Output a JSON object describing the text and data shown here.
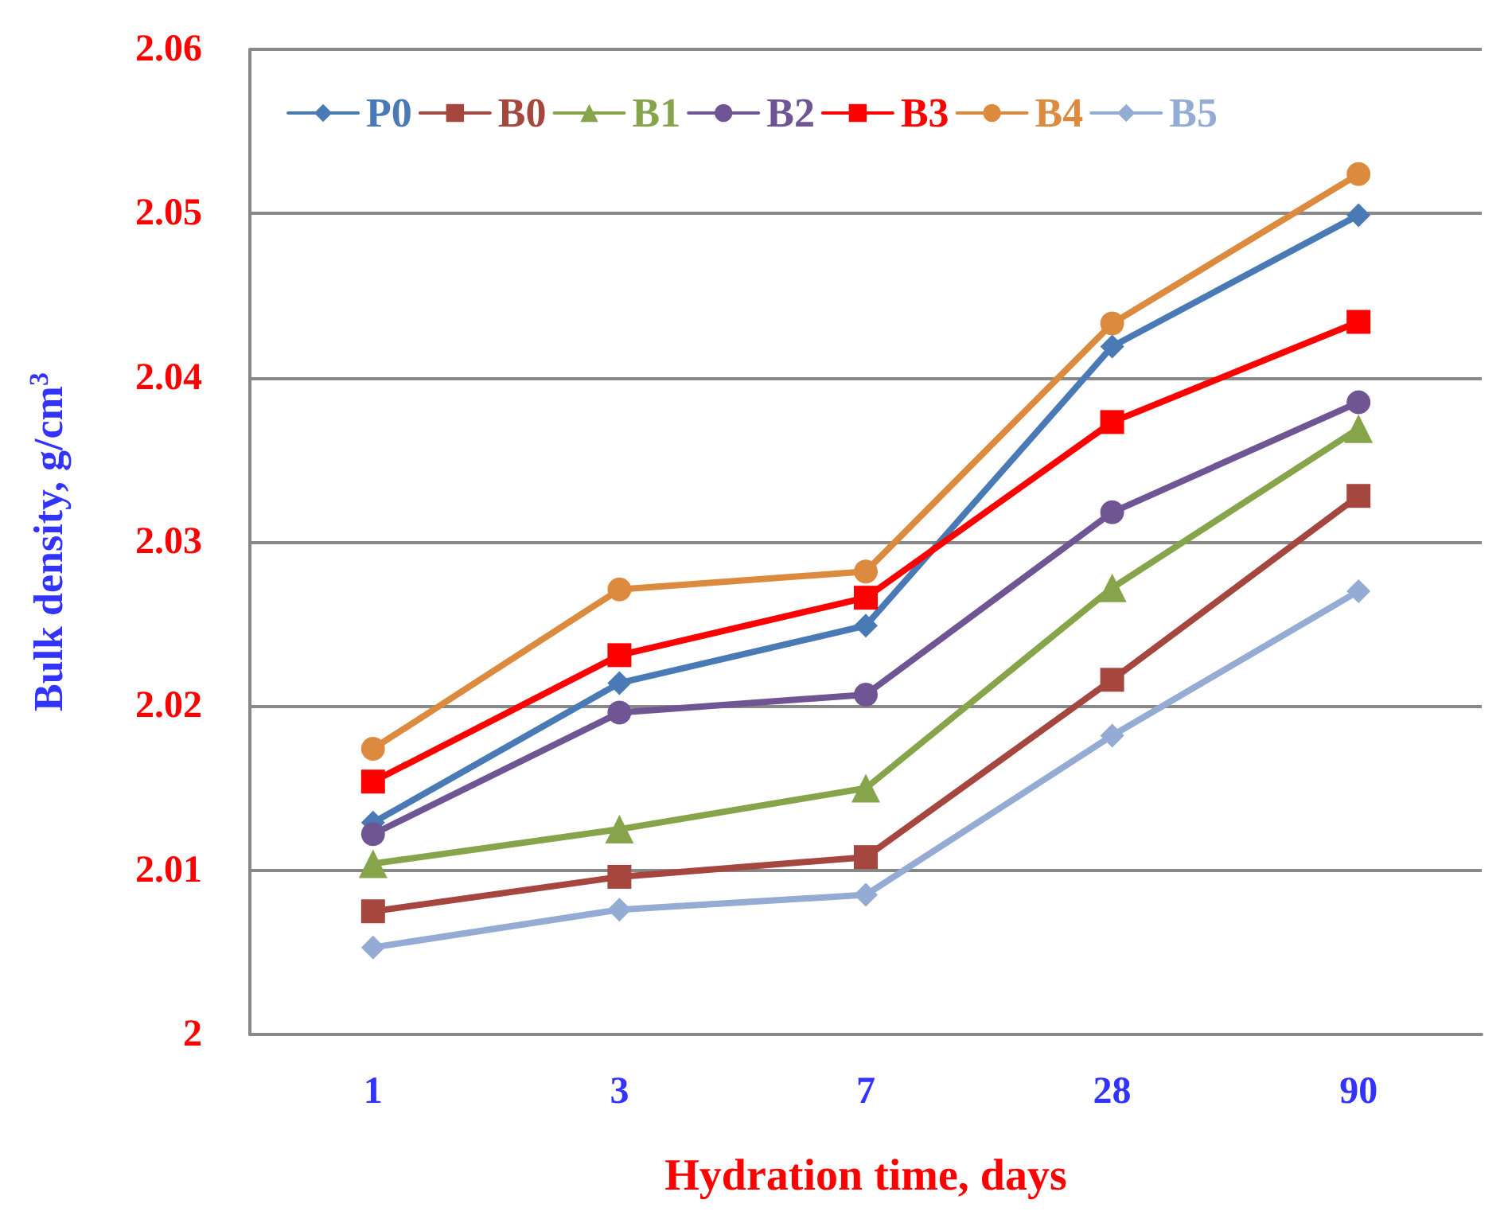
{
  "chart_data": {
    "type": "line",
    "xlabel": "Hydration time, days",
    "ylabel": "Bulk density, g/cm$^{3}$",
    "categories": [
      "1",
      "3",
      "7",
      "28",
      "90"
    ],
    "ylim": [
      2,
      2.06
    ],
    "yticks": [
      2,
      2.01,
      2.02,
      2.03,
      2.04,
      2.05,
      2.06
    ],
    "grid": "y",
    "legend": "top",
    "series": [
      {
        "name": "P0",
        "color": "#4a7ab5",
        "marker": "diamond",
        "values": [
          2.0129,
          2.0214,
          2.0249,
          2.0419,
          2.0499
        ]
      },
      {
        "name": "B0",
        "color": "#a5463f",
        "marker": "square",
        "values": [
          2.0075,
          2.0096,
          2.0108,
          2.0216,
          2.0328
        ]
      },
      {
        "name": "B1",
        "color": "#86a44a",
        "marker": "triangle",
        "values": [
          2.0104,
          2.0125,
          2.015,
          2.0272,
          2.0369
        ]
      },
      {
        "name": "B2",
        "color": "#6f5593",
        "marker": "circle",
        "values": [
          2.0122,
          2.0196,
          2.0207,
          2.0318,
          2.0385
        ]
      },
      {
        "name": "B3",
        "color": "#ff0000",
        "marker": "square",
        "values": [
          2.0154,
          2.0231,
          2.0266,
          2.0373,
          2.0434
        ]
      },
      {
        "name": "B4",
        "color": "#db8a3e",
        "marker": "circle",
        "values": [
          2.0174,
          2.0271,
          2.0282,
          2.0433,
          2.0524
        ]
      },
      {
        "name": "B5",
        "color": "#94abd4",
        "marker": "diamond",
        "values": [
          2.0053,
          2.0076,
          2.0085,
          2.0182,
          2.027
        ]
      }
    ]
  }
}
